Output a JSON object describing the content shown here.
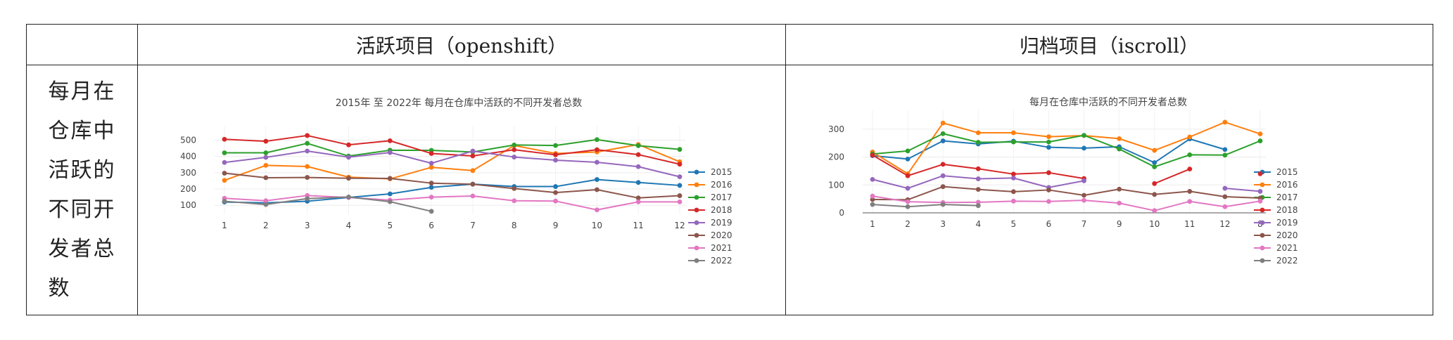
{
  "table": {
    "col1_header": "活跃项目（openshift）",
    "col2_header": "归档项目（iscroll）",
    "row_label": "每月在仓库中活跃的不同开发者总数"
  },
  "chart_data": [
    {
      "type": "line",
      "title": "2015年 至 2022年 每月在仓库中活跃的不同开发者总数",
      "xlabel": "",
      "ylabel": "",
      "categories": [
        "1",
        "2",
        "3",
        "4",
        "5",
        "6",
        "7",
        "8",
        "9",
        "10",
        "11",
        "12"
      ],
      "yticks": [
        100,
        200,
        300,
        400,
        500
      ],
      "ylim": [
        45,
        545
      ],
      "grid": true,
      "legend": "right",
      "series": [
        {
          "name": "2015",
          "color": "#1f77b4",
          "values": [
            120,
            115,
            125,
            148,
            170,
            210,
            230,
            215,
            215,
            258,
            240,
            222
          ]
        },
        {
          "name": "2016",
          "color": "#ff7f0e",
          "values": [
            253,
            345,
            338,
            273,
            262,
            333,
            313,
            467,
            418,
            427,
            473,
            367
          ]
        },
        {
          "name": "2017",
          "color": "#2ca02c",
          "values": [
            422,
            422,
            480,
            402,
            438,
            437,
            427,
            470,
            467,
            503,
            466,
            443
          ]
        },
        {
          "name": "2018",
          "color": "#d62728",
          "values": [
            505,
            493,
            528,
            471,
            496,
            418,
            403,
            441,
            410,
            441,
            411,
            352
          ]
        },
        {
          "name": "2019",
          "color": "#9467bd",
          "values": [
            363,
            394,
            433,
            395,
            424,
            358,
            433,
            396,
            377,
            364,
            337,
            275
          ]
        },
        {
          "name": "2020",
          "color": "#8c564b",
          "values": [
            297,
            269,
            271,
            266,
            265,
            236,
            229,
            203,
            178,
            196,
            145,
            159
          ]
        },
        {
          "name": "2021",
          "color": "#e377c2",
          "values": [
            143,
            128,
            160,
            148,
            132,
            150,
            157,
            128,
            126,
            72,
            121,
            121
          ]
        },
        {
          "name": "2022",
          "color": "#7f7f7f",
          "values": [
            125,
            105,
            141,
            151,
            122,
            63,
            null,
            null,
            null,
            null,
            null,
            null
          ]
        }
      ]
    },
    {
      "type": "line",
      "title": "每月在仓库中活跃的不同开发者总数",
      "xlabel": "",
      "ylabel": "",
      "categories": [
        "1",
        "2",
        "3",
        "4",
        "5",
        "6",
        "7",
        "9",
        "10",
        "11",
        "12",
        "8"
      ],
      "yticks": [
        0,
        100,
        200,
        300
      ],
      "ylim": [
        0,
        345
      ],
      "grid": true,
      "legend": "right",
      "series": [
        {
          "name": "2015",
          "color": "#1f77b4",
          "values": [
            205,
            193,
            258,
            247,
            257,
            235,
            232,
            237,
            180,
            265,
            227,
            null
          ]
        },
        {
          "name": "2016",
          "color": "#ff7f0e",
          "values": [
            218,
            140,
            322,
            287,
            287,
            273,
            277,
            266,
            224,
            272,
            325,
            283
          ]
        },
        {
          "name": "2017",
          "color": "#2ca02c",
          "values": [
            211,
            222,
            284,
            253,
            254,
            254,
            278,
            229,
            165,
            208,
            207,
            258
          ]
        },
        {
          "name": "2018",
          "color": "#d62728",
          "values": [
            207,
            133,
            174,
            158,
            139,
            144,
            123,
            null,
            105,
            157,
            null,
            140
          ]
        },
        {
          "name": "2019",
          "color": "#9467bd",
          "values": [
            120,
            88,
            133,
            122,
            125,
            91,
            115,
            null,
            null,
            null,
            88,
            77
          ]
        },
        {
          "name": "2020",
          "color": "#8c564b",
          "values": [
            48,
            47,
            94,
            84,
            76,
            82,
            63,
            85,
            66,
            77,
            58,
            53
          ]
        },
        {
          "name": "2021",
          "color": "#e377c2",
          "values": [
            60,
            40,
            37,
            38,
            42,
            41,
            45,
            35,
            8,
            41,
            22,
            42
          ]
        },
        {
          "name": "2022",
          "color": "#7f7f7f",
          "values": [
            30,
            22,
            30,
            26,
            null,
            null,
            null,
            null,
            null,
            null,
            null,
            null
          ]
        }
      ]
    }
  ]
}
